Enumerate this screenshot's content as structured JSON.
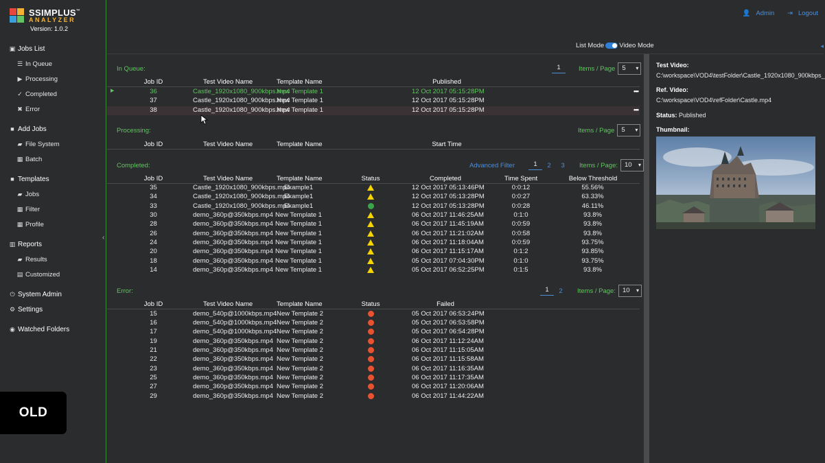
{
  "logo": {
    "brand": "SSIMPLUS",
    "tm": "™",
    "sub": "ANALYZER",
    "version": "Version: 1.0.2"
  },
  "sidebar": [
    {
      "label": "Jobs List",
      "icon": "monitor-icon",
      "glyph": "▣",
      "level": 0
    },
    {
      "label": "In Queue",
      "icon": "database-icon",
      "glyph": "☰",
      "level": 1
    },
    {
      "label": "Processing",
      "icon": "play-icon",
      "glyph": "▶",
      "level": 1
    },
    {
      "label": "Completed",
      "icon": "check-icon",
      "glyph": "✓",
      "level": 1
    },
    {
      "label": "Error",
      "icon": "x-icon",
      "glyph": "✖",
      "level": 1
    },
    {
      "label": "Add Jobs",
      "icon": "video-camera-icon",
      "glyph": "■",
      "level": 0
    },
    {
      "label": "File System",
      "icon": "folder-open-icon",
      "glyph": "▰",
      "level": 1
    },
    {
      "label": "Batch",
      "icon": "table-icon",
      "glyph": "▦",
      "level": 1
    },
    {
      "label": "Templates",
      "icon": "video-camera-icon",
      "glyph": "■",
      "level": 0
    },
    {
      "label": "Jobs",
      "icon": "folder-open-icon",
      "glyph": "▰",
      "level": 1
    },
    {
      "label": "Filter",
      "icon": "table-icon",
      "glyph": "▦",
      "level": 1
    },
    {
      "label": "Profile",
      "icon": "table-icon",
      "glyph": "▦",
      "level": 1
    },
    {
      "label": "Reports",
      "icon": "bar-chart-icon",
      "glyph": "▥",
      "level": 0
    },
    {
      "label": "Results",
      "icon": "folder-open-icon",
      "glyph": "▰",
      "level": 1
    },
    {
      "label": "Customized",
      "icon": "document-icon",
      "glyph": "▤",
      "level": 1
    },
    {
      "label": "System Admin",
      "icon": "power-icon",
      "glyph": "⏻",
      "level": 0
    },
    {
      "label": "Settings",
      "icon": "gear-icon",
      "glyph": "⚙",
      "level": 0
    },
    {
      "label": "Watched Folders",
      "icon": "eye-icon",
      "glyph": "◉",
      "level": 0
    }
  ],
  "badge": "OLD",
  "topbar": {
    "admin": "Admin",
    "logout": "Logout"
  },
  "mode": {
    "list": "List Mode",
    "video": "Video Mode"
  },
  "queue": {
    "title": "In Queue:",
    "page": "1",
    "items_label": "Items / Page",
    "items_value": "5",
    "headers": {
      "id": "Job ID",
      "tv": "Test Video Name",
      "tn": "Template Name",
      "pub": "Published"
    },
    "rows": [
      {
        "id": "36",
        "tv": "Castle_1920x1080_900kbps.mp4",
        "tn": "New Template 1",
        "pub": "12 Oct 2017 05:15:28PM"
      },
      {
        "id": "37",
        "tv": "Castle_1920x1080_900kbps.mp4",
        "tn": "New Template 1",
        "pub": "12 Oct 2017 05:15:28PM"
      },
      {
        "id": "38",
        "tv": "Castle_1920x1080_900kbps.mp4",
        "tn": "New Template 1",
        "pub": "12 Oct 2017 05:15:28PM"
      }
    ]
  },
  "processing": {
    "title": "Processing:",
    "items_label": "Items / Page",
    "items_value": "5",
    "headers": {
      "id": "Job ID",
      "tv": "Test Video Name",
      "tn": "Template Name",
      "st": "Start Time"
    }
  },
  "completed": {
    "title": "Completed:",
    "advanced": "Advanced Filter",
    "pages": [
      "1",
      "2",
      "3"
    ],
    "items_label": "Items / Page:",
    "items_value": "10",
    "headers": {
      "id": "Job ID",
      "tv": "Test Video Name",
      "tn": "Template Name",
      "status": "Status",
      "done": "Completed",
      "spent": "Time Spent",
      "below": "Below Threshold"
    },
    "rows": [
      {
        "id": "35",
        "tv": "Castle_1920x1080_900kbps.mp4",
        "tn": "Example1",
        "status": "warn",
        "done": "12 Oct 2017 05:13:46PM",
        "spent": "0:0:12",
        "below": "55.56%"
      },
      {
        "id": "34",
        "tv": "Castle_1920x1080_900kbps.mp4",
        "tn": "Example1",
        "status": "warn",
        "done": "12 Oct 2017 05:13:28PM",
        "spent": "0:0:27",
        "below": "63.33%"
      },
      {
        "id": "33",
        "tv": "Castle_1920x1080_900kbps.mp4",
        "tn": "Example1",
        "status": "ok",
        "done": "12 Oct 2017 05:13:28PM",
        "spent": "0:0:28",
        "below": "46.11%"
      },
      {
        "id": "30",
        "tv": "demo_360p@350kbps.mp4",
        "tn": "New Template 1",
        "status": "warn",
        "done": "06 Oct 2017 11:46:25AM",
        "spent": "0:1:0",
        "below": "93.8%"
      },
      {
        "id": "28",
        "tv": "demo_360p@350kbps.mp4",
        "tn": "New Template 1",
        "status": "warn",
        "done": "06 Oct 2017 11:45:19AM",
        "spent": "0:0:59",
        "below": "93.8%"
      },
      {
        "id": "26",
        "tv": "demo_360p@350kbps.mp4",
        "tn": "New Template 1",
        "status": "warn",
        "done": "06 Oct 2017 11:21:02AM",
        "spent": "0:0:58",
        "below": "93.8%"
      },
      {
        "id": "24",
        "tv": "demo_360p@350kbps.mp4",
        "tn": "New Template 1",
        "status": "warn",
        "done": "06 Oct 2017 11:18:04AM",
        "spent": "0:0:59",
        "below": "93.75%"
      },
      {
        "id": "20",
        "tv": "demo_360p@350kbps.mp4",
        "tn": "New Template 1",
        "status": "warn",
        "done": "06 Oct 2017 11:15:17AM",
        "spent": "0:1:2",
        "below": "93.85%"
      },
      {
        "id": "18",
        "tv": "demo_360p@350kbps.mp4",
        "tn": "New Template 1",
        "status": "warn",
        "done": "05 Oct 2017 07:04:30PM",
        "spent": "0:1:0",
        "below": "93.75%"
      },
      {
        "id": "14",
        "tv": "demo_360p@350kbps.mp4",
        "tn": "New Template 1",
        "status": "warn",
        "done": "05 Oct 2017 06:52:25PM",
        "spent": "0:1:5",
        "below": "93.8%"
      }
    ]
  },
  "error": {
    "title": "Error:",
    "pages": [
      "1",
      "2"
    ],
    "items_label": "Items / Page:",
    "items_value": "10",
    "headers": {
      "id": "Job ID",
      "tv": "Test Video Name",
      "tn": "Template Name",
      "status": "Status",
      "failed": "Failed"
    },
    "rows": [
      {
        "id": "15",
        "tv": "demo_540p@1000kbps.mp4",
        "tn": "New Template 2",
        "failed": "05 Oct 2017 06:53:24PM"
      },
      {
        "id": "16",
        "tv": "demo_540p@1000kbps.mp4",
        "tn": "New Template 2",
        "failed": "05 Oct 2017 06:53:58PM"
      },
      {
        "id": "17",
        "tv": "demo_540p@1000kbps.mp4",
        "tn": "New Template 2",
        "failed": "05 Oct 2017 06:54:28PM"
      },
      {
        "id": "19",
        "tv": "demo_360p@350kbps.mp4",
        "tn": "New Template 2",
        "failed": "06 Oct 2017 11:12:24AM"
      },
      {
        "id": "21",
        "tv": "demo_360p@350kbps.mp4",
        "tn": "New Template 2",
        "failed": "06 Oct 2017 11:15:05AM"
      },
      {
        "id": "22",
        "tv": "demo_360p@350kbps.mp4",
        "tn": "New Template 2",
        "failed": "06 Oct 2017 11:15:58AM"
      },
      {
        "id": "23",
        "tv": "demo_360p@350kbps.mp4",
        "tn": "New Template 2",
        "failed": "06 Oct 2017 11:16:35AM"
      },
      {
        "id": "25",
        "tv": "demo_360p@350kbps.mp4",
        "tn": "New Template 2",
        "failed": "06 Oct 2017 11:17:35AM"
      },
      {
        "id": "27",
        "tv": "demo_360p@350kbps.mp4",
        "tn": "New Template 2",
        "failed": "06 Oct 2017 11:20:06AM"
      },
      {
        "id": "29",
        "tv": "demo_360p@350kbps.mp4",
        "tn": "New Template 2",
        "failed": "06 Oct 2017 11:44:22AM"
      }
    ]
  },
  "details": {
    "test_label": "Test Video:",
    "test_path": "C:\\workspace\\VOD4\\testFolder\\Castle_1920x1080_900kbps_",
    "ref_label": "Ref. Video:",
    "ref_path": "C:\\workspace\\VOD4\\refFolder\\Castle.mp4",
    "status_label": "Status:",
    "status_value": "Published",
    "thumb_label": "Thumbnail:"
  },
  "colors": {
    "accent_green": "#62c462",
    "link_blue": "#4f8fd6",
    "warn": "#f5d400",
    "error": "#e6532f",
    "ok": "#3aa54a"
  }
}
